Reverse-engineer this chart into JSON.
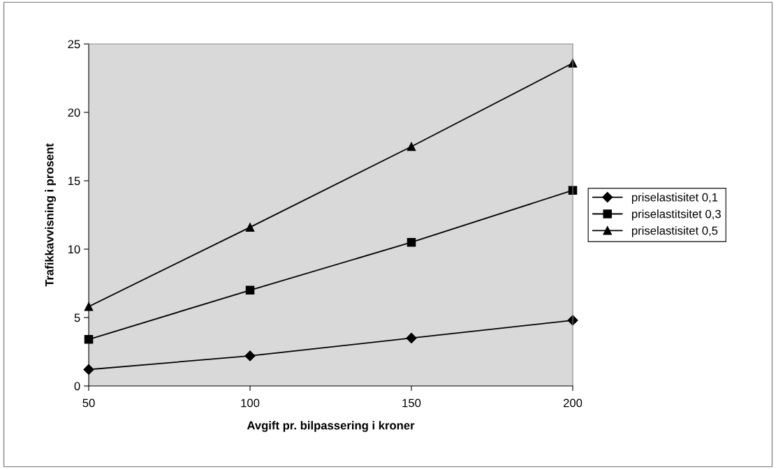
{
  "chart_data": {
    "type": "line",
    "xlabel": "Avgift pr. bilpassering i kroner",
    "ylabel": "Trafikkavvisning i prosent",
    "x": [
      50,
      100,
      150,
      200
    ],
    "series": [
      {
        "name": "priselastisitet 0,1",
        "color": "#000000",
        "marker": "diamond",
        "values": [
          1.2,
          2.2,
          3.5,
          4.8
        ]
      },
      {
        "name": "priselastitsitet 0,3",
        "color": "#000000",
        "marker": "square",
        "values": [
          3.4,
          7.0,
          10.5,
          14.3
        ]
      },
      {
        "name": "priselastisitet 0,5",
        "color": "#000000",
        "marker": "triangle",
        "values": [
          5.8,
          11.6,
          17.5,
          23.6
        ]
      }
    ],
    "xlim": [
      50,
      200
    ],
    "xticks": [
      50,
      100,
      150,
      200
    ],
    "ylim": [
      0,
      25
    ],
    "yticks": [
      0,
      5,
      10,
      15,
      20,
      25
    ],
    "grid": false,
    "legend": "right",
    "line_style": "solid"
  }
}
